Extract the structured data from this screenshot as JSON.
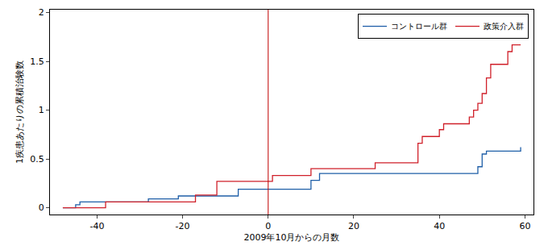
{
  "chart_data": {
    "type": "line",
    "line_style": "step",
    "x_label": "2009年10月からの月数",
    "y_label": "1疾患あたりの累積治験数",
    "xlim": [
      -51,
      62
    ],
    "xticks": [
      -40,
      -20,
      0,
      20,
      40,
      60
    ],
    "ylim": [
      -0.07,
      2.03
    ],
    "yticks": [
      0,
      0.5,
      1,
      1.5,
      2
    ],
    "grid": false,
    "legend": "top-right",
    "reference_lines": [
      {
        "x": 0,
        "color": "#c00000"
      }
    ],
    "series": [
      {
        "name": "コントロール群",
        "color": "#1f5fa8",
        "x": [
          -48,
          -45,
          -44,
          -28,
          -21,
          -7,
          10,
          12,
          49,
          50,
          51,
          59
        ],
        "values": [
          0,
          0.03,
          0.06,
          0.09,
          0.12,
          0.19,
          0.28,
          0.35,
          0.42,
          0.55,
          0.58,
          0.62
        ]
      },
      {
        "name": "政策介入群",
        "color": "#d0202a",
        "x": [
          -48,
          -38,
          -17,
          -12,
          1,
          10,
          25,
          35,
          36,
          40,
          41,
          47,
          48,
          49,
          50,
          51,
          52,
          56,
          57,
          59
        ],
        "values": [
          0,
          0.06,
          0.13,
          0.27,
          0.33,
          0.4,
          0.46,
          0.66,
          0.73,
          0.8,
          0.86,
          0.93,
          1.0,
          1.07,
          1.17,
          1.33,
          1.47,
          1.6,
          1.67,
          1.67
        ]
      }
    ]
  }
}
